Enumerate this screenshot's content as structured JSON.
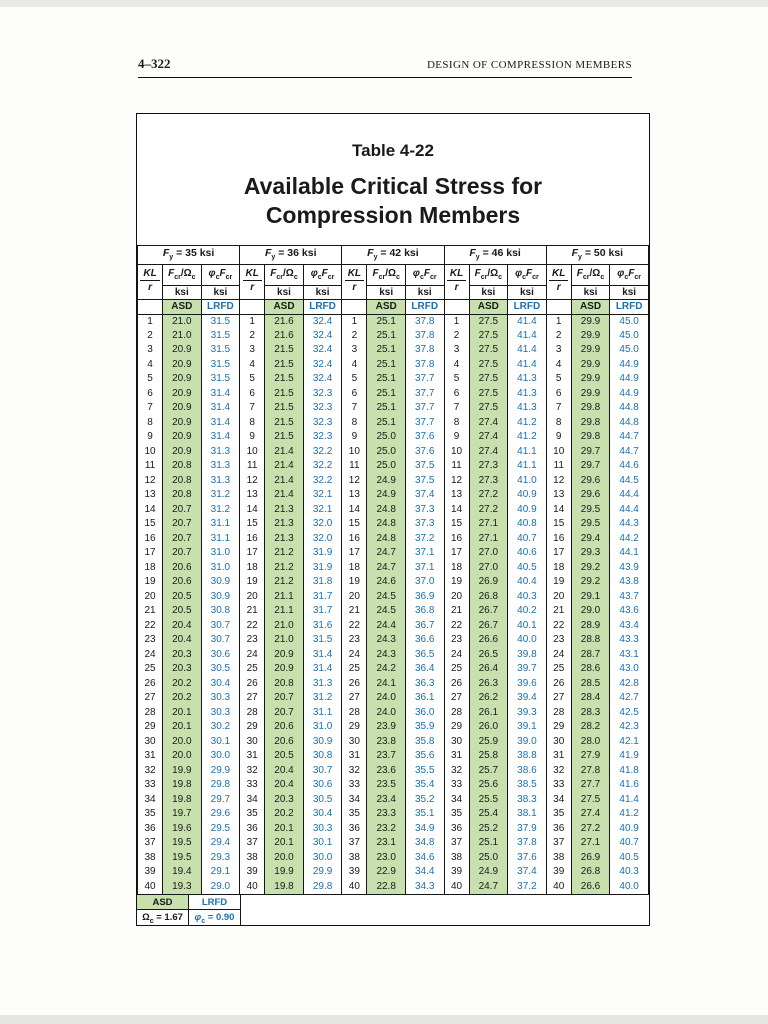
{
  "page": {
    "page_number": "4–322",
    "running_header": "DESIGN OF COMPRESSION MEMBERS"
  },
  "title": {
    "table_number": "Table 4-22",
    "line1": "Available Critical Stress for",
    "line2": "Compression Members"
  },
  "table": {
    "kl_numerator": "KL",
    "kl_denominator": "r",
    "asd_formula": "Fcr/Ωc",
    "lrfd_formula": "φcFcr",
    "unit_label": "ksi",
    "asd_label": "ASD",
    "lrfd_label": "LRFD",
    "kl_values": [
      1,
      2,
      3,
      4,
      5,
      6,
      7,
      8,
      9,
      10,
      11,
      12,
      13,
      14,
      15,
      16,
      17,
      18,
      19,
      20,
      21,
      22,
      23,
      24,
      25,
      26,
      27,
      28,
      29,
      30,
      31,
      32,
      33,
      34,
      35,
      36,
      37,
      38,
      39,
      40
    ],
    "groups": [
      {
        "fy_label": "Fy = 35 ksi",
        "asd": [
          "21.0",
          "21.0",
          "20.9",
          "20.9",
          "20.9",
          "20.9",
          "20.9",
          "20.9",
          "20.9",
          "20.9",
          "20.8",
          "20.8",
          "20.8",
          "20.7",
          "20.7",
          "20.7",
          "20.7",
          "20.6",
          "20.6",
          "20.5",
          "20.5",
          "20.4",
          "20.4",
          "20.3",
          "20.3",
          "20.2",
          "20.2",
          "20.1",
          "20.1",
          "20.0",
          "20.0",
          "19.9",
          "19.8",
          "19.8",
          "19.7",
          "19.6",
          "19.5",
          "19.5",
          "19.4",
          "19.3"
        ],
        "lrfd": [
          "31.5",
          "31.5",
          "31.5",
          "31.5",
          "31.5",
          "31.4",
          "31.4",
          "31.4",
          "31.4",
          "31.3",
          "31.3",
          "31.3",
          "31.2",
          "31.2",
          "31.1",
          "31.1",
          "31.0",
          "31.0",
          "30.9",
          "30.9",
          "30.8",
          "30.7",
          "30.7",
          "30.6",
          "30.5",
          "30.4",
          "30.3",
          "30.3",
          "30.2",
          "30.1",
          "30.0",
          "29.9",
          "29.8",
          "29.7",
          "29.6",
          "29.5",
          "29.4",
          "29.3",
          "29.1",
          "29.0"
        ]
      },
      {
        "fy_label": "Fy = 36 ksi",
        "asd": [
          "21.6",
          "21.6",
          "21.5",
          "21.5",
          "21.5",
          "21.5",
          "21.5",
          "21.5",
          "21.5",
          "21.4",
          "21.4",
          "21.4",
          "21.4",
          "21.3",
          "21.3",
          "21.3",
          "21.2",
          "21.2",
          "21.2",
          "21.1",
          "21.1",
          "21.0",
          "21.0",
          "20.9",
          "20.9",
          "20.8",
          "20.7",
          "20.7",
          "20.6",
          "20.6",
          "20.5",
          "20.4",
          "20.4",
          "20.3",
          "20.2",
          "20.1",
          "20.1",
          "20.0",
          "19.9",
          "19.8"
        ],
        "lrfd": [
          "32.4",
          "32.4",
          "32.4",
          "32.4",
          "32.4",
          "32.3",
          "32.3",
          "32.3",
          "32.3",
          "32.2",
          "32.2",
          "32.2",
          "32.1",
          "32.1",
          "32.0",
          "32.0",
          "31.9",
          "31.9",
          "31.8",
          "31.7",
          "31.7",
          "31.6",
          "31.5",
          "31.4",
          "31.4",
          "31.3",
          "31.2",
          "31.1",
          "31.0",
          "30.9",
          "30.8",
          "30.7",
          "30.6",
          "30.5",
          "30.4",
          "30.3",
          "30.1",
          "30.0",
          "29.9",
          "29.8"
        ]
      },
      {
        "fy_label": "Fy = 42 ksi",
        "asd": [
          "25.1",
          "25.1",
          "25.1",
          "25.1",
          "25.1",
          "25.1",
          "25.1",
          "25.1",
          "25.0",
          "25.0",
          "25.0",
          "24.9",
          "24.9",
          "24.8",
          "24.8",
          "24.8",
          "24.7",
          "24.7",
          "24.6",
          "24.5",
          "24.5",
          "24.4",
          "24.3",
          "24.3",
          "24.2",
          "24.1",
          "24.0",
          "24.0",
          "23.9",
          "23.8",
          "23.7",
          "23.6",
          "23.5",
          "23.4",
          "23.3",
          "23.2",
          "23.1",
          "23.0",
          "22.9",
          "22.8"
        ],
        "lrfd": [
          "37.8",
          "37.8",
          "37.8",
          "37.8",
          "37.7",
          "37.7",
          "37.7",
          "37.7",
          "37.6",
          "37.6",
          "37.5",
          "37.5",
          "37.4",
          "37.3",
          "37.3",
          "37.2",
          "37.1",
          "37.1",
          "37.0",
          "36.9",
          "36.8",
          "36.7",
          "36.6",
          "36.5",
          "36.4",
          "36.3",
          "36.1",
          "36.0",
          "35.9",
          "35.8",
          "35.6",
          "35.5",
          "35.4",
          "35.2",
          "35.1",
          "34.9",
          "34.8",
          "34.6",
          "34.4",
          "34.3"
        ]
      },
      {
        "fy_label": "Fy = 46 ksi",
        "asd": [
          "27.5",
          "27.5",
          "27.5",
          "27.5",
          "27.5",
          "27.5",
          "27.5",
          "27.4",
          "27.4",
          "27.4",
          "27.3",
          "27.3",
          "27.2",
          "27.2",
          "27.1",
          "27.1",
          "27.0",
          "27.0",
          "26.9",
          "26.8",
          "26.7",
          "26.7",
          "26.6",
          "26.5",
          "26.4",
          "26.3",
          "26.2",
          "26.1",
          "26.0",
          "25.9",
          "25.8",
          "25.7",
          "25.6",
          "25.5",
          "25.4",
          "25.2",
          "25.1",
          "25.0",
          "24.9",
          "24.7"
        ],
        "lrfd": [
          "41.4",
          "41.4",
          "41.4",
          "41.4",
          "41.3",
          "41.3",
          "41.3",
          "41.2",
          "41.2",
          "41.1",
          "41.1",
          "41.0",
          "40.9",
          "40.9",
          "40.8",
          "40.7",
          "40.6",
          "40.5",
          "40.4",
          "40.3",
          "40.2",
          "40.1",
          "40.0",
          "39.8",
          "39.7",
          "39.6",
          "39.4",
          "39.3",
          "39.1",
          "39.0",
          "38.8",
          "38.6",
          "38.5",
          "38.3",
          "38.1",
          "37.9",
          "37.8",
          "37.6",
          "37.4",
          "37.2"
        ]
      },
      {
        "fy_label": "Fy = 50 ksi",
        "asd": [
          "29.9",
          "29.9",
          "29.9",
          "29.9",
          "29.9",
          "29.9",
          "29.8",
          "29.8",
          "29.8",
          "29.7",
          "29.7",
          "29.6",
          "29.6",
          "29.5",
          "29.5",
          "29.4",
          "29.3",
          "29.2",
          "29.2",
          "29.1",
          "29.0",
          "28.9",
          "28.8",
          "28.7",
          "28.6",
          "28.5",
          "28.4",
          "28.3",
          "28.2",
          "28.0",
          "27.9",
          "27.8",
          "27.7",
          "27.5",
          "27.4",
          "27.2",
          "27.1",
          "26.9",
          "26.8",
          "26.6"
        ],
        "lrfd": [
          "45.0",
          "45.0",
          "45.0",
          "44.9",
          "44.9",
          "44.9",
          "44.8",
          "44.8",
          "44.7",
          "44.7",
          "44.6",
          "44.5",
          "44.4",
          "44.4",
          "44.3",
          "44.2",
          "44.1",
          "43.9",
          "43.8",
          "43.7",
          "43.6",
          "43.4",
          "43.3",
          "43.1",
          "43.0",
          "42.8",
          "42.7",
          "42.5",
          "42.3",
          "42.1",
          "41.9",
          "41.8",
          "41.6",
          "41.4",
          "41.2",
          "40.9",
          "40.7",
          "40.5",
          "40.3",
          "40.0"
        ]
      }
    ]
  },
  "footnote": {
    "asd_label": "ASD",
    "lrfd_label": "LRFD",
    "omega_value": "Ωc = 1.67",
    "phi_value": "φc = 0.90"
  },
  "colors": {
    "asd_green": "#c8e0ae",
    "lrfd_blue": "#1d6fae",
    "border_color": "#161616",
    "text_color": "#1a1a1a"
  }
}
